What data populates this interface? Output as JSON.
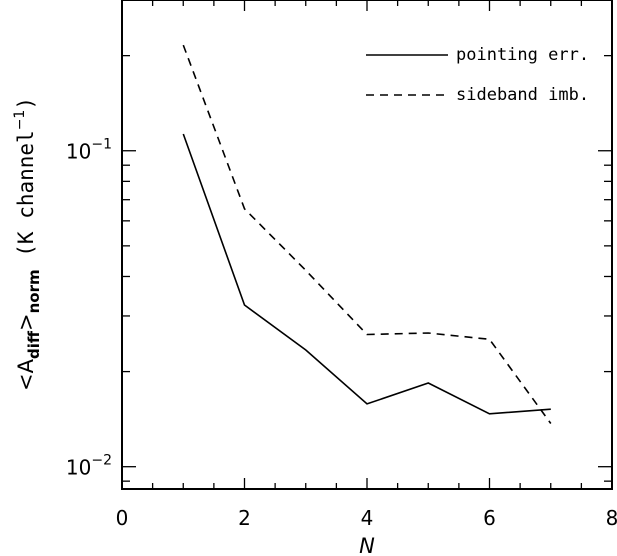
{
  "chart_data": {
    "type": "line",
    "xlabel": "N",
    "ylabel": {
      "prefix": "<A",
      "sub1": "diff",
      "mid": ">",
      "sub2": "norm",
      "rest": " (K channel",
      "sup": "−1",
      "close": ")"
    },
    "xlim": [
      0,
      8
    ],
    "ylim": [
      0.0085,
      0.3
    ],
    "yscale": "log",
    "x_ticks": [
      0,
      2,
      4,
      6,
      8
    ],
    "x_tick_labels": [
      "0",
      "2",
      "4",
      "6",
      "8"
    ],
    "y_major_ticks": [
      {
        "value": 0.1,
        "base": "10",
        "exp": "−1"
      },
      {
        "value": 0.01,
        "base": "10",
        "exp": "−2"
      }
    ],
    "grid": false,
    "legend_position": "top-right",
    "series": [
      {
        "name": "pointing err.",
        "style": "solid",
        "color": "#000000",
        "x": [
          1,
          2,
          3,
          4,
          5,
          6,
          7
        ],
        "y": [
          0.113,
          0.0325,
          0.0234,
          0.0158,
          0.0184,
          0.0147,
          0.0152
        ]
      },
      {
        "name": "sideband imb.",
        "style": "dashed",
        "color": "#000000",
        "x": [
          1,
          2,
          3,
          4,
          5,
          6,
          7
        ],
        "y": [
          0.216,
          0.0655,
          0.0418,
          0.0262,
          0.0265,
          0.0253,
          0.0137
        ]
      }
    ]
  }
}
